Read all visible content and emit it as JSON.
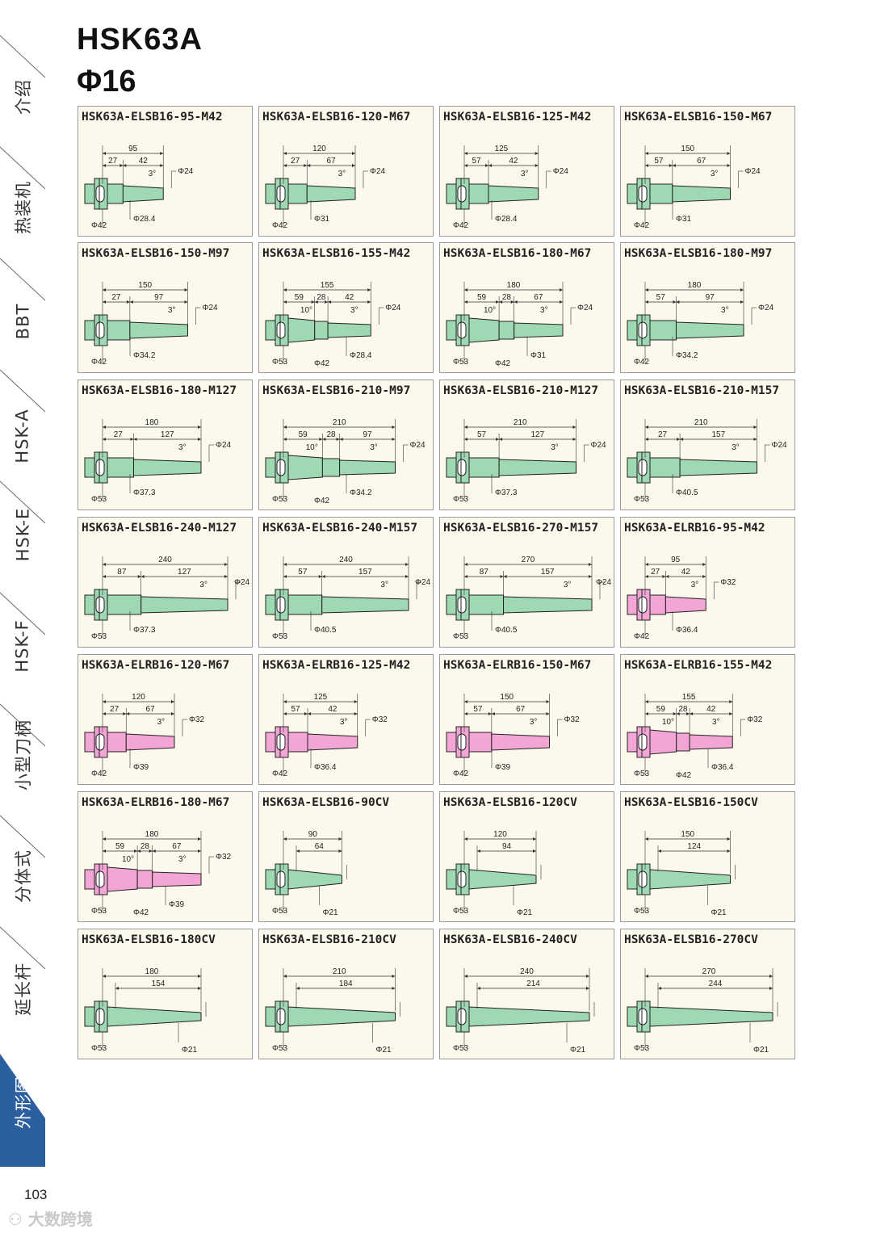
{
  "header": {
    "title": "HSK63A",
    "subtitle": "Φ16"
  },
  "sidebar": {
    "tabs": [
      "介绍",
      "热装机",
      "BBT",
      "HSK-A",
      "HSK-E",
      "HSK-F",
      "小型刀柄",
      "分体式",
      "延长杆",
      "外形图"
    ],
    "active_tab": "外形图",
    "accent_color": "#2b5fa0"
  },
  "colors": {
    "elsb": "#9fd9b4",
    "elrb": "#f3a6d6",
    "card_bg": "#fcf9ec"
  },
  "cards": [
    {
      "title": "HSK63A-ELSB16-95-M42",
      "kind": "elsb",
      "total": "95",
      "dims": [
        "27",
        "42"
      ],
      "angle": "3°",
      "tip": "Φ24",
      "base": "Φ42",
      "d2": "Φ28.4"
    },
    {
      "title": "HSK63A-ELSB16-120-M67",
      "kind": "elsb",
      "total": "120",
      "dims": [
        "27",
        "67"
      ],
      "angle": "3°",
      "tip": "Φ24",
      "base": "Φ42",
      "d2": "Φ31"
    },
    {
      "title": "HSK63A-ELSB16-125-M42",
      "kind": "elsb",
      "total": "125",
      "dims": [
        "57",
        "42"
      ],
      "angle": "3°",
      "tip": "Φ24",
      "base": "Φ42",
      "d2": "Φ28.4"
    },
    {
      "title": "HSK63A-ELSB16-150-M67",
      "kind": "elsb",
      "total": "150",
      "dims": [
        "57",
        "67"
      ],
      "angle": "3°",
      "tip": "Φ24",
      "base": "Φ42",
      "d2": "Φ31"
    },
    {
      "title": "HSK63A-ELSB16-150-M97",
      "kind": "elsb",
      "total": "150",
      "dims": [
        "27",
        "97"
      ],
      "angle": "3°",
      "tip": "Φ24",
      "base": "Φ42",
      "d2": "Φ34.2"
    },
    {
      "title": "HSK63A-ELSB16-155-M42",
      "kind": "elsb",
      "total": "155",
      "dims": [
        "59",
        "28",
        "42"
      ],
      "angle": "3°",
      "angle2": "10°",
      "tip": "Φ24",
      "base": "Φ53",
      "d1": "Φ42",
      "d2": "Φ28.4"
    },
    {
      "title": "HSK63A-ELSB16-180-M67",
      "kind": "elsb",
      "total": "180",
      "dims": [
        "59",
        "28",
        "67"
      ],
      "angle": "3°",
      "angle2": "10°",
      "tip": "Φ24",
      "base": "Φ53",
      "d1": "Φ42",
      "d2": "Φ31"
    },
    {
      "title": "HSK63A-ELSB16-180-M97",
      "kind": "elsb",
      "total": "180",
      "dims": [
        "57",
        "97"
      ],
      "angle": "3°",
      "tip": "Φ24",
      "base": "Φ42",
      "d2": "Φ34.2"
    },
    {
      "title": "HSK63A-ELSB16-180-M127",
      "kind": "elsb",
      "total": "180",
      "dims": [
        "27",
        "127"
      ],
      "angle": "3°",
      "tip": "Φ24",
      "base": "Φ53",
      "d2": "Φ37.3"
    },
    {
      "title": "HSK63A-ELSB16-210-M97",
      "kind": "elsb",
      "total": "210",
      "dims": [
        "59",
        "28",
        "97"
      ],
      "angle": "3°",
      "angle2": "10°",
      "tip": "Φ24",
      "base": "Φ53",
      "d1": "Φ42",
      "d2": "Φ34.2"
    },
    {
      "title": "HSK63A-ELSB16-210-M127",
      "kind": "elsb",
      "total": "210",
      "dims": [
        "57",
        "127"
      ],
      "angle": "3°",
      "tip": "Φ24",
      "base": "Φ53",
      "d2": "Φ37.3"
    },
    {
      "title": "HSK63A-ELSB16-210-M157",
      "kind": "elsb",
      "total": "210",
      "dims": [
        "27",
        "157"
      ],
      "angle": "3°",
      "tip": "Φ24",
      "base": "Φ53",
      "d2": "Φ40.5"
    },
    {
      "title": "HSK63A-ELSB16-240-M127",
      "kind": "elsb",
      "total": "240",
      "dims": [
        "87",
        "127"
      ],
      "angle": "3°",
      "tip": "Φ24",
      "base": "Φ53",
      "d2": "Φ37.3"
    },
    {
      "title": "HSK63A-ELSB16-240-M157",
      "kind": "elsb",
      "total": "240",
      "dims": [
        "57",
        "157"
      ],
      "angle": "3°",
      "tip": "Φ24",
      "base": "Φ53",
      "d2": "Φ40.5"
    },
    {
      "title": "HSK63A-ELSB16-270-M157",
      "kind": "elsb",
      "total": "270",
      "dims": [
        "87",
        "157"
      ],
      "angle": "3°",
      "tip": "Φ24",
      "base": "Φ53",
      "d2": "Φ40.5"
    },
    {
      "title": "HSK63A-ELRB16-95-M42",
      "kind": "elrb",
      "total": "95",
      "dims": [
        "27",
        "42"
      ],
      "angle": "3°",
      "tip": "Φ32",
      "base": "Φ42",
      "d2": "Φ36.4"
    },
    {
      "title": "HSK63A-ELRB16-120-M67",
      "kind": "elrb",
      "total": "120",
      "dims": [
        "27",
        "67"
      ],
      "angle": "3°",
      "tip": "Φ32",
      "base": "Φ42",
      "d2": "Φ39"
    },
    {
      "title": "HSK63A-ELRB16-125-M42",
      "kind": "elrb",
      "total": "125",
      "dims": [
        "57",
        "42"
      ],
      "angle": "3°",
      "tip": "Φ32",
      "base": "Φ42",
      "d2": "Φ36.4"
    },
    {
      "title": "HSK63A-ELRB16-150-M67",
      "kind": "elrb",
      "total": "150",
      "dims": [
        "57",
        "67"
      ],
      "angle": "3°",
      "tip": "Φ32",
      "base": "Φ42",
      "d2": "Φ39"
    },
    {
      "title": "HSK63A-ELRB16-155-M42",
      "kind": "elrb",
      "total": "155",
      "dims": [
        "59",
        "28",
        "42"
      ],
      "angle": "3°",
      "angle2": "10°",
      "tip": "Φ32",
      "base": "Φ53",
      "d1": "Φ42",
      "d2": "Φ36.4"
    },
    {
      "title": "HSK63A-ELRB16-180-M67",
      "kind": "elrb",
      "total": "180",
      "dims": [
        "59",
        "28",
        "67"
      ],
      "angle": "3°",
      "angle2": "10°",
      "tip": "Φ32",
      "base": "Φ53",
      "d1": "Φ42",
      "d2": "Φ39"
    },
    {
      "title": "HSK63A-ELSB16-90CV",
      "kind": "cv",
      "total": "90",
      "dims": [
        "64"
      ],
      "base": "Φ53",
      "d2": "Φ21"
    },
    {
      "title": "HSK63A-ELSB16-120CV",
      "kind": "cv",
      "total": "120",
      "dims": [
        "94"
      ],
      "base": "Φ53",
      "d2": "Φ21"
    },
    {
      "title": "HSK63A-ELSB16-150CV",
      "kind": "cv",
      "total": "150",
      "dims": [
        "124"
      ],
      "base": "Φ53",
      "d2": "Φ21"
    },
    {
      "title": "HSK63A-ELSB16-180CV",
      "kind": "cv",
      "total": "180",
      "dims": [
        "154"
      ],
      "base": "Φ53",
      "d2": "Φ21"
    },
    {
      "title": "HSK63A-ELSB16-210CV",
      "kind": "cv",
      "total": "210",
      "dims": [
        "184"
      ],
      "base": "Φ53",
      "d2": "Φ21"
    },
    {
      "title": "HSK63A-ELSB16-240CV",
      "kind": "cv",
      "total": "240",
      "dims": [
        "214"
      ],
      "base": "Φ53",
      "d2": "Φ21"
    },
    {
      "title": "HSK63A-ELSB16-270CV",
      "kind": "cv",
      "total": "270",
      "dims": [
        "244"
      ],
      "base": "Φ53",
      "d2": "Φ21"
    }
  ],
  "footer": {
    "page_number": "103",
    "watermark": "大数跨境"
  }
}
